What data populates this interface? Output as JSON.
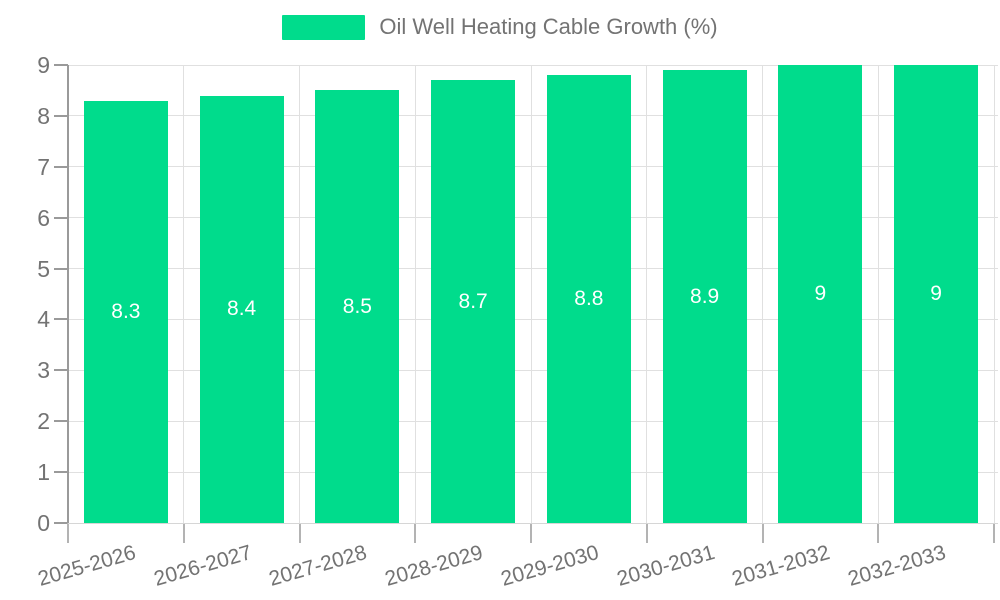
{
  "legend": {
    "label": "Oil Well Heating Cable Growth (%)"
  },
  "chart_data": {
    "type": "bar",
    "title": "Oil Well Heating Cable Growth (%)",
    "categories": [
      "2025-2026",
      "2026-2027",
      "2027-2028",
      "2028-2029",
      "2029-2030",
      "2030-2031",
      "2031-2032",
      "2032-2033"
    ],
    "values": [
      8.3,
      8.4,
      8.5,
      8.7,
      8.8,
      8.9,
      9,
      9
    ],
    "bar_labels": [
      "8.3",
      "8.4",
      "8.5",
      "8.7",
      "8.8",
      "8.9",
      "9",
      "9"
    ],
    "xlabel": "",
    "ylabel": "",
    "ylim": [
      0,
      9
    ],
    "y_ticks": [
      0,
      1,
      2,
      3,
      4,
      5,
      6,
      7,
      8,
      9
    ],
    "grid": true,
    "legend_position": "top-center",
    "value_label_position": "inside-center",
    "colors": {
      "bar": "#00dc8c",
      "value_text": "#ffffff",
      "label_text": "#737373",
      "axis": "#9a9a9a",
      "grid": "#e0e0e0",
      "background": "#ffffff"
    }
  }
}
